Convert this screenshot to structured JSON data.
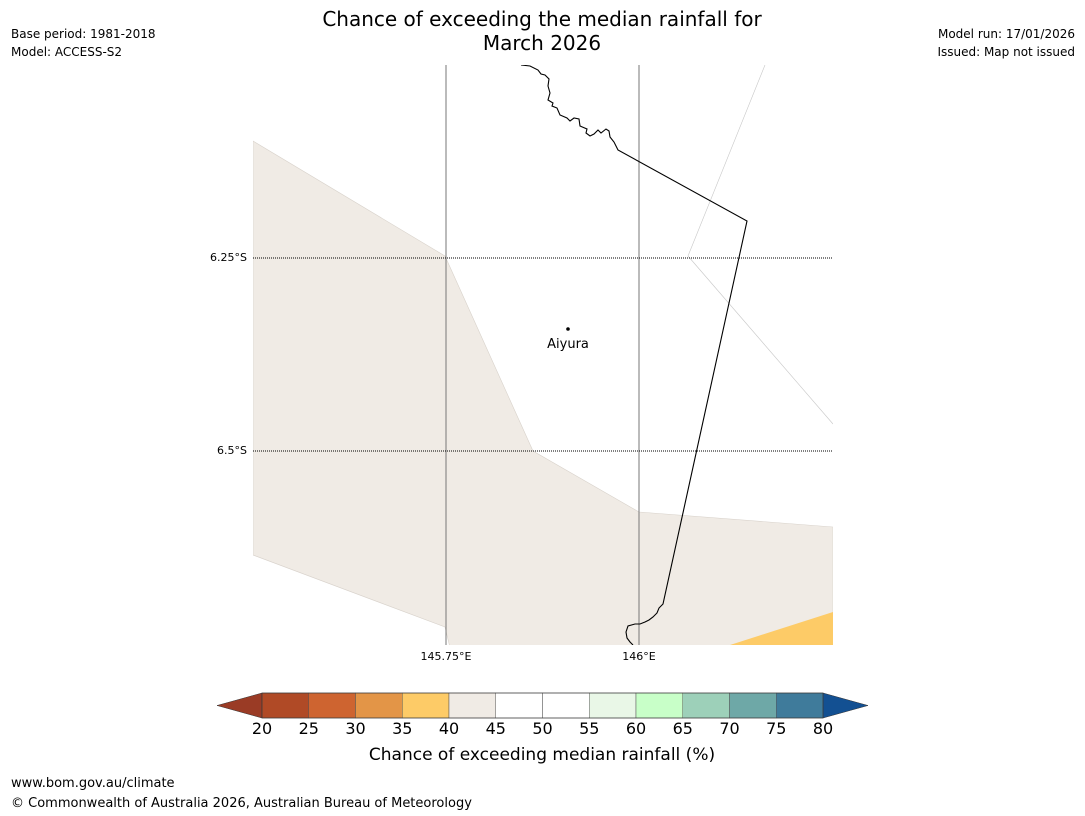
{
  "header": {
    "title_line1": "Chance of exceeding the median rainfall for",
    "title_line2": "March 2026",
    "base_period": "Base period: 1981-2018",
    "model": "Model: ACCESS-S2",
    "model_run": "Model run: 17/01/2026",
    "issued": "Issued: Map not issued"
  },
  "map": {
    "lat_ticks": [
      "6.25°S",
      "6.5°S"
    ],
    "lon_ticks": [
      "145.75°E",
      "146°E"
    ],
    "places": [
      {
        "name": "Aiyura"
      }
    ],
    "colors": {
      "region_40_45": "#f0ebe5",
      "region_35_40": "#fdcb67",
      "gridline": "#000000",
      "coastline": "#000000"
    }
  },
  "colorbar": {
    "title": "Chance of exceeding median rainfall (%)",
    "ticks": [
      "20",
      "25",
      "30",
      "35",
      "40",
      "45",
      "50",
      "55",
      "60",
      "65",
      "70",
      "75",
      "80"
    ],
    "low_extend_color": "#9a3b25",
    "high_extend_color": "#135092",
    "bins": [
      {
        "range": "20-25",
        "color": "#b04a26"
      },
      {
        "range": "25-30",
        "color": "#ce6430"
      },
      {
        "range": "30-35",
        "color": "#e39547"
      },
      {
        "range": "35-40",
        "color": "#fdcb67"
      },
      {
        "range": "40-45",
        "color": "#f0ebe5"
      },
      {
        "range": "45-50",
        "color": "#ffffff"
      },
      {
        "range": "50-55",
        "color": "#ffffff"
      },
      {
        "range": "55-60",
        "color": "#e9f7e7"
      },
      {
        "range": "60-65",
        "color": "#c8ffc8"
      },
      {
        "range": "65-70",
        "color": "#9dd0b9"
      },
      {
        "range": "70-75",
        "color": "#6ea8a7"
      },
      {
        "range": "75-80",
        "color": "#3f7b9b"
      }
    ]
  },
  "footer": {
    "website": "www.bom.gov.au/climate",
    "copyright": "© Commonwealth of Australia 2026, Australian Bureau of Meteorology"
  }
}
